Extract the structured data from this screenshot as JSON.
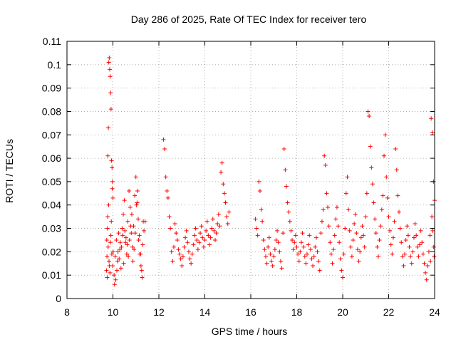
{
  "chart_data": {
    "type": "scatter",
    "title": "Day 286 of 2025, Rate Of TEC Index for receiver tero",
    "xlabel": "GPS time / hours",
    "ylabel": "ROTI / TECUs",
    "xlim": [
      8,
      24
    ],
    "ylim": [
      0,
      0.11
    ],
    "xticks": [
      8,
      10,
      12,
      14,
      16,
      18,
      20,
      22,
      24
    ],
    "xtick_labels": [
      "8",
      "10",
      "12",
      "14",
      "16",
      "18",
      "20",
      "22",
      "24"
    ],
    "yticks": [
      0,
      0.01,
      0.02,
      0.03,
      0.04,
      0.05,
      0.06,
      0.07,
      0.08,
      0.09,
      0.1,
      0.11
    ],
    "ytick_labels": [
      "0",
      "0.01",
      "0.02",
      "0.03",
      "0.04",
      "0.05",
      "0.06",
      "0.07",
      "0.08",
      "0.09",
      "0.1",
      "0.11"
    ],
    "grid": true,
    "marker": "+",
    "color": "#ff0000",
    "series": [
      {
        "name": "ROTI",
        "points": [
          [
            9.72,
            0.012
          ],
          [
            9.74,
            0.018
          ],
          [
            9.76,
            0.03
          ],
          [
            9.78,
            0.061
          ],
          [
            9.8,
            0.073
          ],
          [
            9.82,
            0.101
          ],
          [
            9.84,
            0.103
          ],
          [
            9.86,
            0.098
          ],
          [
            9.88,
            0.095
          ],
          [
            9.9,
            0.088
          ],
          [
            9.92,
            0.081
          ],
          [
            9.94,
            0.059
          ],
          [
            9.96,
            0.056
          ],
          [
            9.98,
            0.05
          ],
          [
            10.0,
            0.043
          ],
          [
            9.75,
            0.009
          ],
          [
            9.79,
            0.022
          ],
          [
            9.83,
            0.016
          ],
          [
            9.87,
            0.011
          ],
          [
            9.91,
            0.027
          ],
          [
            9.95,
            0.019
          ],
          [
            9.99,
            0.014
          ],
          [
            9.73,
            0.025
          ],
          [
            9.77,
            0.035
          ],
          [
            9.81,
            0.04
          ],
          [
            9.85,
            0.014
          ],
          [
            9.89,
            0.024
          ],
          [
            9.93,
            0.033
          ],
          [
            9.97,
            0.047
          ],
          [
            10.01,
            0.02
          ],
          [
            10.05,
            0.01
          ],
          [
            10.1,
            0.018
          ],
          [
            10.15,
            0.025
          ],
          [
            10.2,
            0.016
          ],
          [
            10.25,
            0.028
          ],
          [
            10.3,
            0.021
          ],
          [
            10.35,
            0.013
          ],
          [
            10.4,
            0.03
          ],
          [
            10.45,
            0.036
          ],
          [
            10.5,
            0.042
          ],
          [
            10.55,
            0.024
          ],
          [
            10.6,
            0.019
          ],
          [
            10.65,
            0.033
          ],
          [
            10.7,
            0.046
          ],
          [
            10.75,
            0.039
          ],
          [
            10.8,
            0.028
          ],
          [
            10.85,
            0.022
          ],
          [
            10.9,
            0.031
          ],
          [
            10.95,
            0.044
          ],
          [
            11.0,
            0.052
          ],
          [
            11.05,
            0.041
          ],
          [
            11.1,
            0.034
          ],
          [
            11.15,
            0.027
          ],
          [
            11.2,
            0.019
          ],
          [
            11.25,
            0.012
          ],
          [
            11.3,
            0.023
          ],
          [
            11.35,
            0.029
          ],
          [
            11.4,
            0.033
          ],
          [
            10.07,
            0.006
          ],
          [
            10.12,
            0.008
          ],
          [
            10.17,
            0.012
          ],
          [
            10.22,
            0.02
          ],
          [
            10.27,
            0.017
          ],
          [
            10.32,
            0.024
          ],
          [
            10.37,
            0.022
          ],
          [
            10.42,
            0.027
          ],
          [
            10.47,
            0.015
          ],
          [
            10.52,
            0.029
          ],
          [
            10.57,
            0.026
          ],
          [
            10.62,
            0.023
          ],
          [
            10.67,
            0.018
          ],
          [
            10.72,
            0.025
          ],
          [
            10.77,
            0.031
          ],
          [
            10.82,
            0.036
          ],
          [
            10.87,
            0.016
          ],
          [
            10.92,
            0.021
          ],
          [
            10.97,
            0.028
          ],
          [
            11.02,
            0.04
          ],
          [
            11.07,
            0.046
          ],
          [
            11.12,
            0.025
          ],
          [
            11.17,
            0.019
          ],
          [
            11.22,
            0.014
          ],
          [
            11.27,
            0.009
          ],
          [
            11.32,
            0.033
          ],
          [
            12.2,
            0.068
          ],
          [
            12.25,
            0.064
          ],
          [
            12.3,
            0.052
          ],
          [
            12.35,
            0.046
          ],
          [
            12.4,
            0.043
          ],
          [
            12.45,
            0.035
          ],
          [
            12.5,
            0.03
          ],
          [
            12.55,
            0.02
          ],
          [
            12.6,
            0.016
          ],
          [
            12.65,
            0.022
          ],
          [
            12.7,
            0.032
          ],
          [
            12.75,
            0.028
          ],
          [
            12.8,
            0.025
          ],
          [
            12.85,
            0.021
          ],
          [
            12.9,
            0.019
          ],
          [
            12.95,
            0.017
          ],
          [
            13.0,
            0.014
          ],
          [
            13.05,
            0.018
          ],
          [
            13.1,
            0.022
          ],
          [
            13.15,
            0.026
          ],
          [
            13.2,
            0.029
          ],
          [
            13.25,
            0.024
          ],
          [
            13.3,
            0.02
          ],
          [
            13.35,
            0.017
          ],
          [
            13.4,
            0.015
          ],
          [
            13.45,
            0.019
          ],
          [
            13.5,
            0.023
          ],
          [
            13.55,
            0.027
          ],
          [
            13.6,
            0.03
          ],
          [
            13.65,
            0.025
          ],
          [
            13.7,
            0.021
          ],
          [
            13.75,
            0.024
          ],
          [
            13.8,
            0.028
          ],
          [
            13.85,
            0.031
          ],
          [
            13.9,
            0.026
          ],
          [
            13.95,
            0.022
          ],
          [
            14.0,
            0.025
          ],
          [
            14.05,
            0.029
          ],
          [
            14.1,
            0.033
          ],
          [
            14.15,
            0.027
          ],
          [
            14.2,
            0.023
          ],
          [
            14.25,
            0.026
          ],
          [
            14.3,
            0.03
          ],
          [
            14.35,
            0.034
          ],
          [
            14.4,
            0.029
          ],
          [
            14.45,
            0.025
          ],
          [
            14.5,
            0.028
          ],
          [
            14.55,
            0.032
          ],
          [
            14.6,
            0.036
          ],
          [
            14.65,
            0.031
          ],
          [
            14.7,
            0.054
          ],
          [
            14.75,
            0.058
          ],
          [
            14.8,
            0.049
          ],
          [
            14.85,
            0.045
          ],
          [
            14.9,
            0.041
          ],
          [
            14.95,
            0.035
          ],
          [
            15.0,
            0.032
          ],
          [
            15.05,
            0.037
          ],
          [
            16.2,
            0.034
          ],
          [
            16.25,
            0.03
          ],
          [
            16.3,
            0.027
          ],
          [
            16.35,
            0.05
          ],
          [
            16.4,
            0.046
          ],
          [
            16.45,
            0.038
          ],
          [
            16.5,
            0.033
          ],
          [
            16.55,
            0.025
          ],
          [
            16.6,
            0.021
          ],
          [
            16.65,
            0.018
          ],
          [
            16.7,
            0.015
          ],
          [
            16.75,
            0.022
          ],
          [
            16.8,
            0.026
          ],
          [
            16.85,
            0.019
          ],
          [
            16.9,
            0.016
          ],
          [
            16.95,
            0.014
          ],
          [
            17.0,
            0.018
          ],
          [
            17.05,
            0.021
          ],
          [
            17.1,
            0.025
          ],
          [
            17.15,
            0.029
          ],
          [
            17.2,
            0.024
          ],
          [
            17.25,
            0.02
          ],
          [
            17.3,
            0.016
          ],
          [
            17.35,
            0.013
          ],
          [
            17.4,
            0.028
          ],
          [
            17.45,
            0.064
          ],
          [
            17.5,
            0.055
          ],
          [
            17.55,
            0.048
          ],
          [
            17.6,
            0.041
          ],
          [
            17.65,
            0.037
          ],
          [
            17.7,
            0.033
          ],
          [
            17.75,
            0.029
          ],
          [
            17.8,
            0.025
          ],
          [
            17.85,
            0.021
          ],
          [
            17.9,
            0.024
          ],
          [
            17.95,
            0.027
          ],
          [
            18.0,
            0.022
          ],
          [
            18.05,
            0.019
          ],
          [
            18.1,
            0.016
          ],
          [
            18.15,
            0.02
          ],
          [
            18.2,
            0.024
          ],
          [
            18.25,
            0.028
          ],
          [
            18.3,
            0.022
          ],
          [
            18.35,
            0.018
          ],
          [
            18.4,
            0.015
          ],
          [
            18.45,
            0.019
          ],
          [
            18.5,
            0.023
          ],
          [
            18.55,
            0.027
          ],
          [
            18.6,
            0.021
          ],
          [
            18.65,
            0.017
          ],
          [
            18.7,
            0.014
          ],
          [
            18.75,
            0.018
          ],
          [
            18.8,
            0.022
          ],
          [
            18.85,
            0.026
          ],
          [
            18.9,
            0.02
          ],
          [
            18.95,
            0.016
          ],
          [
            19.0,
            0.012
          ],
          [
            19.05,
            0.028
          ],
          [
            19.1,
            0.033
          ],
          [
            19.15,
            0.038
          ],
          [
            19.2,
            0.061
          ],
          [
            19.25,
            0.057
          ],
          [
            19.3,
            0.045
          ],
          [
            19.35,
            0.039
          ],
          [
            19.4,
            0.031
          ],
          [
            19.45,
            0.024
          ],
          [
            19.5,
            0.019
          ],
          [
            19.55,
            0.015
          ],
          [
            19.6,
            0.021
          ],
          [
            19.65,
            0.027
          ],
          [
            19.7,
            0.034
          ],
          [
            19.75,
            0.039
          ],
          [
            19.8,
            0.031
          ],
          [
            19.85,
            0.024
          ],
          [
            19.9,
            0.017
          ],
          [
            19.95,
            0.012
          ],
          [
            20.0,
            0.009
          ],
          [
            20.05,
            0.019
          ],
          [
            20.1,
            0.03
          ],
          [
            20.15,
            0.045
          ],
          [
            20.2,
            0.052
          ],
          [
            20.25,
            0.038
          ],
          [
            20.3,
            0.029
          ],
          [
            20.35,
            0.022
          ],
          [
            20.4,
            0.018
          ],
          [
            20.45,
            0.025
          ],
          [
            20.5,
            0.032
          ],
          [
            20.55,
            0.036
          ],
          [
            20.6,
            0.028
          ],
          [
            20.65,
            0.021
          ],
          [
            20.7,
            0.016
          ],
          [
            20.75,
            0.02
          ],
          [
            20.8,
            0.026
          ],
          [
            20.85,
            0.031
          ],
          [
            20.9,
            0.027
          ],
          [
            20.95,
            0.022
          ],
          [
            21.0,
            0.035
          ],
          [
            21.05,
            0.045
          ],
          [
            21.1,
            0.08
          ],
          [
            21.15,
            0.078
          ],
          [
            21.2,
            0.065
          ],
          [
            21.25,
            0.056
          ],
          [
            21.3,
            0.049
          ],
          [
            21.35,
            0.041
          ],
          [
            21.4,
            0.034
          ],
          [
            21.45,
            0.028
          ],
          [
            21.5,
            0.022
          ],
          [
            21.55,
            0.018
          ],
          [
            21.6,
            0.025
          ],
          [
            21.65,
            0.031
          ],
          [
            21.7,
            0.038
          ],
          [
            21.75,
            0.044
          ],
          [
            21.8,
            0.061
          ],
          [
            21.85,
            0.07
          ],
          [
            21.9,
            0.052
          ],
          [
            21.95,
            0.043
          ],
          [
            22.0,
            0.035
          ],
          [
            22.05,
            0.029
          ],
          [
            22.1,
            0.023
          ],
          [
            22.15,
            0.019
          ],
          [
            22.2,
            0.026
          ],
          [
            22.25,
            0.033
          ],
          [
            22.3,
            0.064
          ],
          [
            22.35,
            0.055
          ],
          [
            22.4,
            0.044
          ],
          [
            22.45,
            0.037
          ],
          [
            22.5,
            0.03
          ],
          [
            22.55,
            0.024
          ],
          [
            22.6,
            0.018
          ],
          [
            22.65,
            0.014
          ],
          [
            22.7,
            0.019
          ],
          [
            22.75,
            0.025
          ],
          [
            22.8,
            0.031
          ],
          [
            22.85,
            0.027
          ],
          [
            22.9,
            0.022
          ],
          [
            22.95,
            0.018
          ],
          [
            23.0,
            0.015
          ],
          [
            23.05,
            0.02
          ],
          [
            23.1,
            0.026
          ],
          [
            23.15,
            0.032
          ],
          [
            23.2,
            0.027
          ],
          [
            23.25,
            0.022
          ],
          [
            23.3,
            0.018
          ],
          [
            23.35,
            0.023
          ],
          [
            23.4,
            0.029
          ],
          [
            23.45,
            0.024
          ],
          [
            23.5,
            0.019
          ],
          [
            23.55,
            0.015
          ],
          [
            23.6,
            0.011
          ],
          [
            23.65,
            0.008
          ],
          [
            23.7,
            0.014
          ],
          [
            23.75,
            0.02
          ],
          [
            23.8,
            0.027
          ],
          [
            23.85,
            0.077
          ],
          [
            23.9,
            0.071
          ],
          [
            23.95,
            0.05
          ],
          [
            24.0,
            0.042
          ],
          [
            23.88,
            0.035
          ],
          [
            23.92,
            0.029
          ],
          [
            23.96,
            0.022
          ],
          [
            23.98,
            0.018
          ],
          [
            23.82,
            0.016
          ]
        ]
      }
    ]
  }
}
